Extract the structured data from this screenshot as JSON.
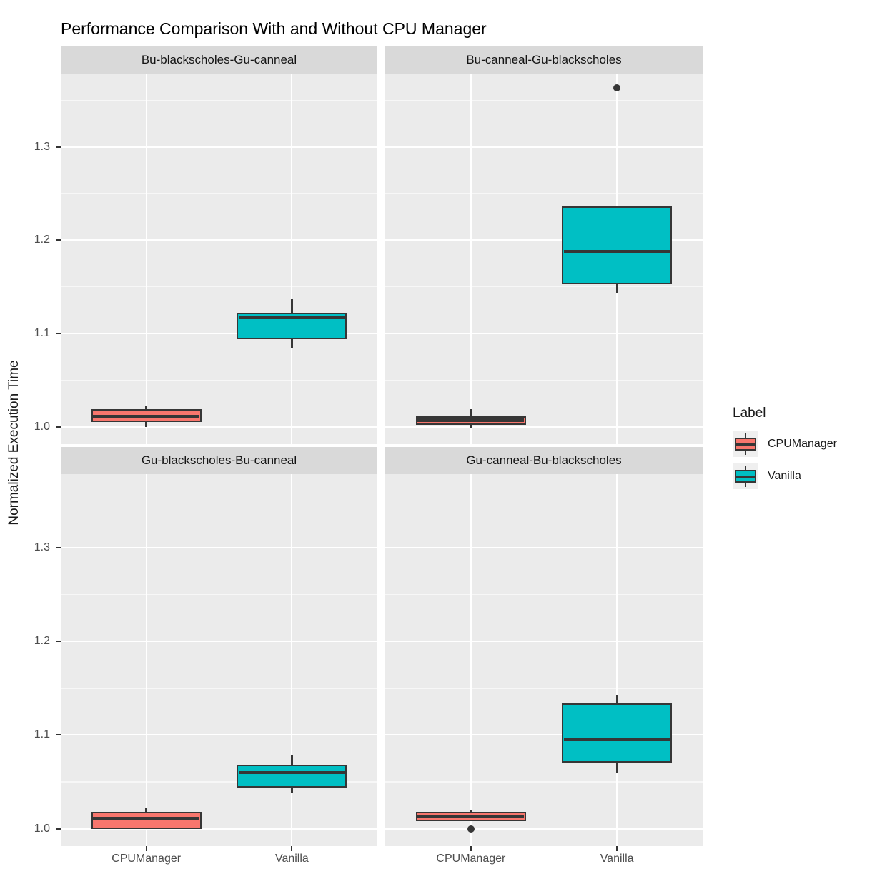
{
  "title": "Performance Comparison With and Without CPU Manager",
  "y_axis": {
    "label": "Normalized Execution Time",
    "ticks": [
      1.0,
      1.1,
      1.2,
      1.3
    ],
    "tick_labels": [
      "1.0",
      "1.1",
      "1.2",
      "1.3"
    ],
    "minor_ticks": [
      1.05,
      1.15,
      1.25,
      1.35
    ],
    "domain": [
      0.9815,
      1.3785
    ]
  },
  "x_axis": {
    "categories": [
      "CPUManager",
      "Vanilla"
    ]
  },
  "legend": {
    "title": "Label",
    "entries": [
      {
        "label": "CPUManager",
        "color": "#F8766D"
      },
      {
        "label": "Vanilla",
        "color": "#00BFC4"
      }
    ]
  },
  "colors": {
    "cpumanager_fill": "#F8766D",
    "vanilla_fill": "#00BFC4",
    "stroke": "#363636",
    "panel_bg": "#EBEBEB",
    "strip_bg": "#D9D9D9",
    "grid_major": "#FFFFFF",
    "grid_minor": "#F7F7F7",
    "tick_text": "#4D4D4D",
    "text": "#1A1A1A"
  },
  "chart_data": {
    "type": "boxplot",
    "title": "Performance Comparison With and Without CPU Manager",
    "ylabel": "Normalized Execution Time",
    "ylim": [
      0.98,
      1.38
    ],
    "grid": true,
    "legend_position": "right",
    "facets": [
      {
        "label": "Bu-blackscholes-Gu-canneal",
        "boxes": [
          {
            "group": "CPUManager",
            "whisker_low": 1.0,
            "q1": 1.005,
            "median": 1.011,
            "q3": 1.019,
            "whisker_high": 1.022,
            "outliers": []
          },
          {
            "group": "Vanilla",
            "whisker_low": 1.084,
            "q1": 1.094,
            "median": 1.117,
            "q3": 1.122,
            "whisker_high": 1.137,
            "outliers": []
          }
        ]
      },
      {
        "label": "Bu-canneal-Gu-blackscholes",
        "boxes": [
          {
            "group": "CPUManager",
            "whisker_low": 0.999,
            "q1": 1.002,
            "median": 1.007,
            "q3": 1.011,
            "whisker_high": 1.019,
            "outliers": []
          },
          {
            "group": "Vanilla",
            "whisker_low": 1.143,
            "q1": 1.153,
            "median": 1.188,
            "q3": 1.236,
            "whisker_high": 1.236,
            "outliers": [
              1.363
            ]
          }
        ]
      },
      {
        "label": "Gu-blackscholes-Bu-canneal",
        "boxes": [
          {
            "group": "CPUManager",
            "whisker_low": 1.0,
            "q1": 1.0,
            "median": 1.011,
            "q3": 1.018,
            "whisker_high": 1.023,
            "outliers": []
          },
          {
            "group": "Vanilla",
            "whisker_low": 1.038,
            "q1": 1.044,
            "median": 1.06,
            "q3": 1.068,
            "whisker_high": 1.079,
            "outliers": []
          }
        ]
      },
      {
        "label": "Gu-canneal-Bu-blackscholes",
        "boxes": [
          {
            "group": "CPUManager",
            "whisker_low": 1.008,
            "q1": 1.008,
            "median": 1.013,
            "q3": 1.018,
            "whisker_high": 1.02,
            "outliers": [
              1.0
            ]
          },
          {
            "group": "Vanilla",
            "whisker_low": 1.06,
            "q1": 1.071,
            "median": 1.095,
            "q3": 1.134,
            "whisker_high": 1.142,
            "outliers": []
          }
        ]
      }
    ]
  }
}
